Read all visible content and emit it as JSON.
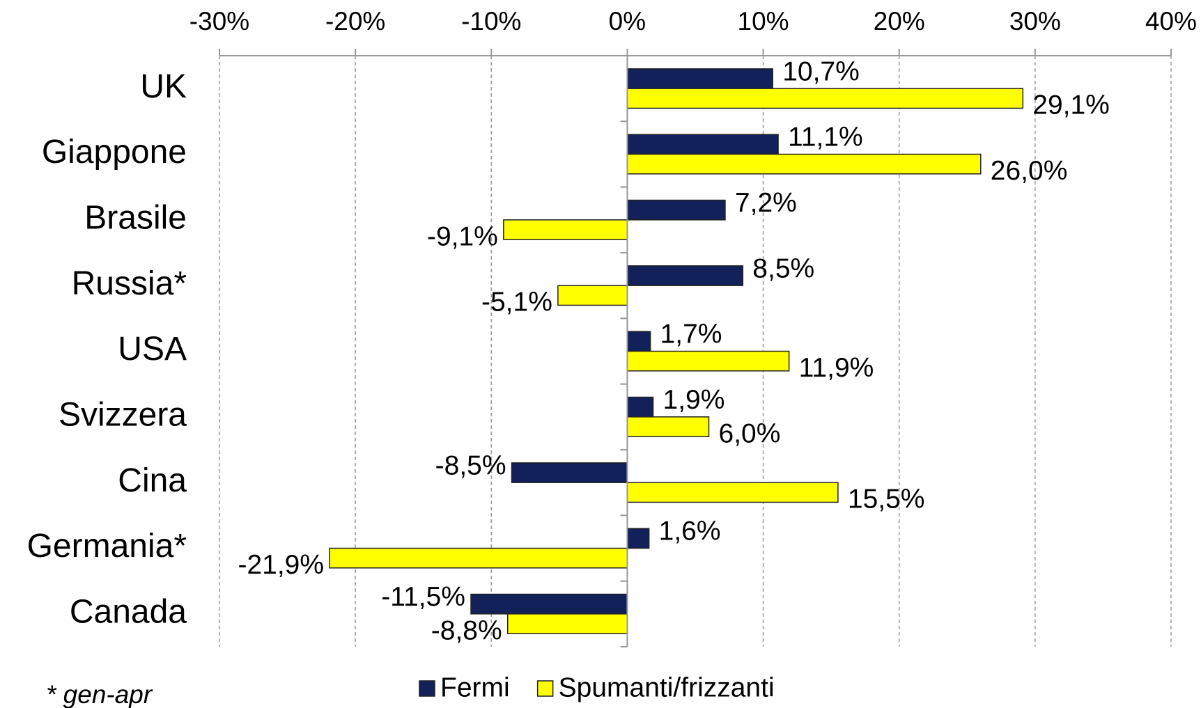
{
  "chart_data": {
    "type": "hbar",
    "categories": [
      "UK",
      "Giappone",
      "Brasile",
      "Russia*",
      "USA",
      "Svizzera",
      "Cina",
      "Germania*",
      "Canada"
    ],
    "series": [
      {
        "name": "Fermi",
        "color": "#12215a",
        "values": [
          10.7,
          11.1,
          7.2,
          8.5,
          1.7,
          1.9,
          -8.5,
          1.6,
          -11.5
        ],
        "value_labels": [
          "10,7%",
          "11,1%",
          "7,2%",
          "8,5%",
          "1,7%",
          "1,9%",
          "-8,5%",
          "1,6%",
          "-11,5%"
        ]
      },
      {
        "name": "Spumanti/frizzanti",
        "color": "#ffff00",
        "values": [
          29.1,
          26.0,
          -9.1,
          -5.1,
          11.9,
          6.0,
          15.5,
          -21.9,
          -8.8
        ],
        "value_labels": [
          "29,1%",
          "26,0%",
          "-9,1%",
          "-5,1%",
          "11,9%",
          "6,0%",
          "15,5%",
          "-21,9%",
          "-8,8%"
        ]
      }
    ],
    "xlim": [
      -30,
      40
    ],
    "xticks": [
      {
        "value": -30,
        "label": "-30%"
      },
      {
        "value": -20,
        "label": "-20%"
      },
      {
        "value": -10,
        "label": "-10%"
      },
      {
        "value": 0,
        "label": "0%"
      },
      {
        "value": 10,
        "label": "10%"
      },
      {
        "value": 20,
        "label": "20%"
      },
      {
        "value": 30,
        "label": "30%"
      },
      {
        "value": 40,
        "label": "40%"
      }
    ],
    "grid": true,
    "legend": "bottom",
    "footnote": "* gen-apr"
  }
}
